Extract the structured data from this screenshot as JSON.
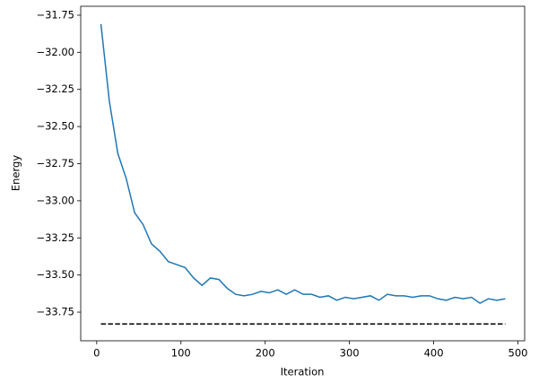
{
  "chart_data": {
    "type": "line",
    "xlabel": "Iteration",
    "ylabel": "Energy",
    "xlim": [
      -19,
      508
    ],
    "ylim": [
      -33.943,
      -31.69
    ],
    "xticks": [
      0,
      100,
      200,
      300,
      400,
      500
    ],
    "yticks": [
      {
        "value": -31.75,
        "label": "−31.75"
      },
      {
        "value": -32.0,
        "label": "−32.00"
      },
      {
        "value": -32.25,
        "label": "−32.25"
      },
      {
        "value": -32.5,
        "label": "−32.50"
      },
      {
        "value": -32.75,
        "label": "−32.75"
      },
      {
        "value": -33.0,
        "label": "−33.00"
      },
      {
        "value": -33.25,
        "label": "−33.25"
      },
      {
        "value": -33.5,
        "label": "−33.50"
      },
      {
        "value": -33.75,
        "label": "−33.75"
      }
    ],
    "series": [
      {
        "color": "#1f77b4",
        "dashed": false,
        "x": [
          5,
          15,
          25,
          35,
          45,
          55,
          65,
          75,
          85,
          95,
          105,
          115,
          125,
          135,
          145,
          155,
          165,
          175,
          185,
          195,
          205,
          215,
          225,
          235,
          245,
          255,
          265,
          275,
          285,
          295,
          305,
          315,
          325,
          335,
          345,
          355,
          365,
          375,
          385,
          395,
          405,
          415,
          425,
          435,
          445,
          455,
          465,
          475,
          485
        ],
        "values": [
          -31.81,
          -32.33,
          -32.68,
          -32.85,
          -33.08,
          -33.16,
          -33.29,
          -33.34,
          -33.41,
          -33.43,
          -33.45,
          -33.52,
          -33.57,
          -33.52,
          -33.53,
          -33.59,
          -33.63,
          -33.64,
          -33.63,
          -33.61,
          -33.62,
          -33.6,
          -33.63,
          -33.6,
          -33.63,
          -33.63,
          -33.65,
          -33.64,
          -33.67,
          -33.65,
          -33.66,
          -33.65,
          -33.64,
          -33.67,
          -33.63,
          -33.64,
          -33.64,
          -33.65,
          -33.64,
          -33.64,
          -33.66,
          -33.67,
          -33.65,
          -33.66,
          -33.65,
          -33.69,
          -33.66,
          -33.67,
          -33.66
        ]
      },
      {
        "color": "#000000",
        "dashed": true,
        "x": [
          5,
          485
        ],
        "values": [
          -33.83,
          -33.83
        ]
      }
    ]
  }
}
